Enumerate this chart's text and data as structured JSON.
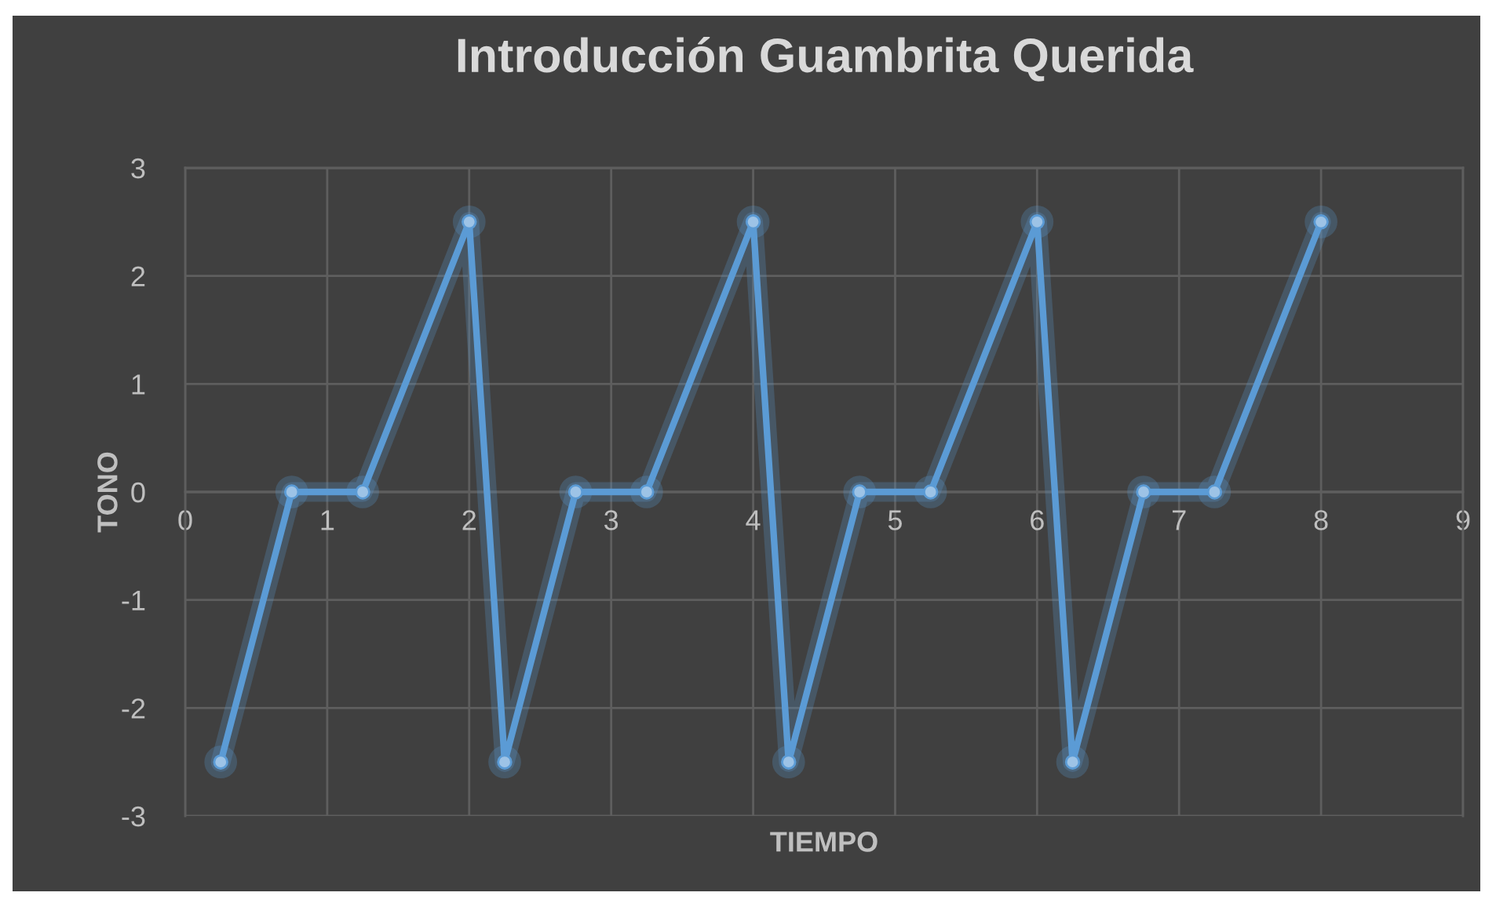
{
  "chart_data": {
    "type": "line",
    "title": "Introducción Guambrita Querida",
    "xlabel": "TIEMPO",
    "ylabel": "TONO",
    "x": [
      0.25,
      0.75,
      1.25,
      2,
      2.25,
      2.75,
      3.25,
      4,
      4.25,
      4.75,
      5.25,
      6,
      6.25,
      6.75,
      7.25,
      8
    ],
    "series": [
      {
        "color": "#5b9bd5",
        "values": [
          -2.5,
          0,
          0,
          2.5,
          -2.5,
          0,
          0,
          2.5,
          -2.5,
          0,
          0,
          2.5,
          -2.5,
          0,
          0,
          2.5
        ]
      }
    ],
    "xlim": [
      0,
      9
    ],
    "ylim": [
      -3,
      3
    ],
    "xticks": [
      0,
      1,
      2,
      3,
      4,
      5,
      6,
      7,
      8,
      9
    ],
    "yticks": [
      -3,
      -2,
      -1,
      0,
      1,
      2,
      3
    ],
    "grid": true,
    "marker": "circle",
    "line_style": "solid"
  }
}
